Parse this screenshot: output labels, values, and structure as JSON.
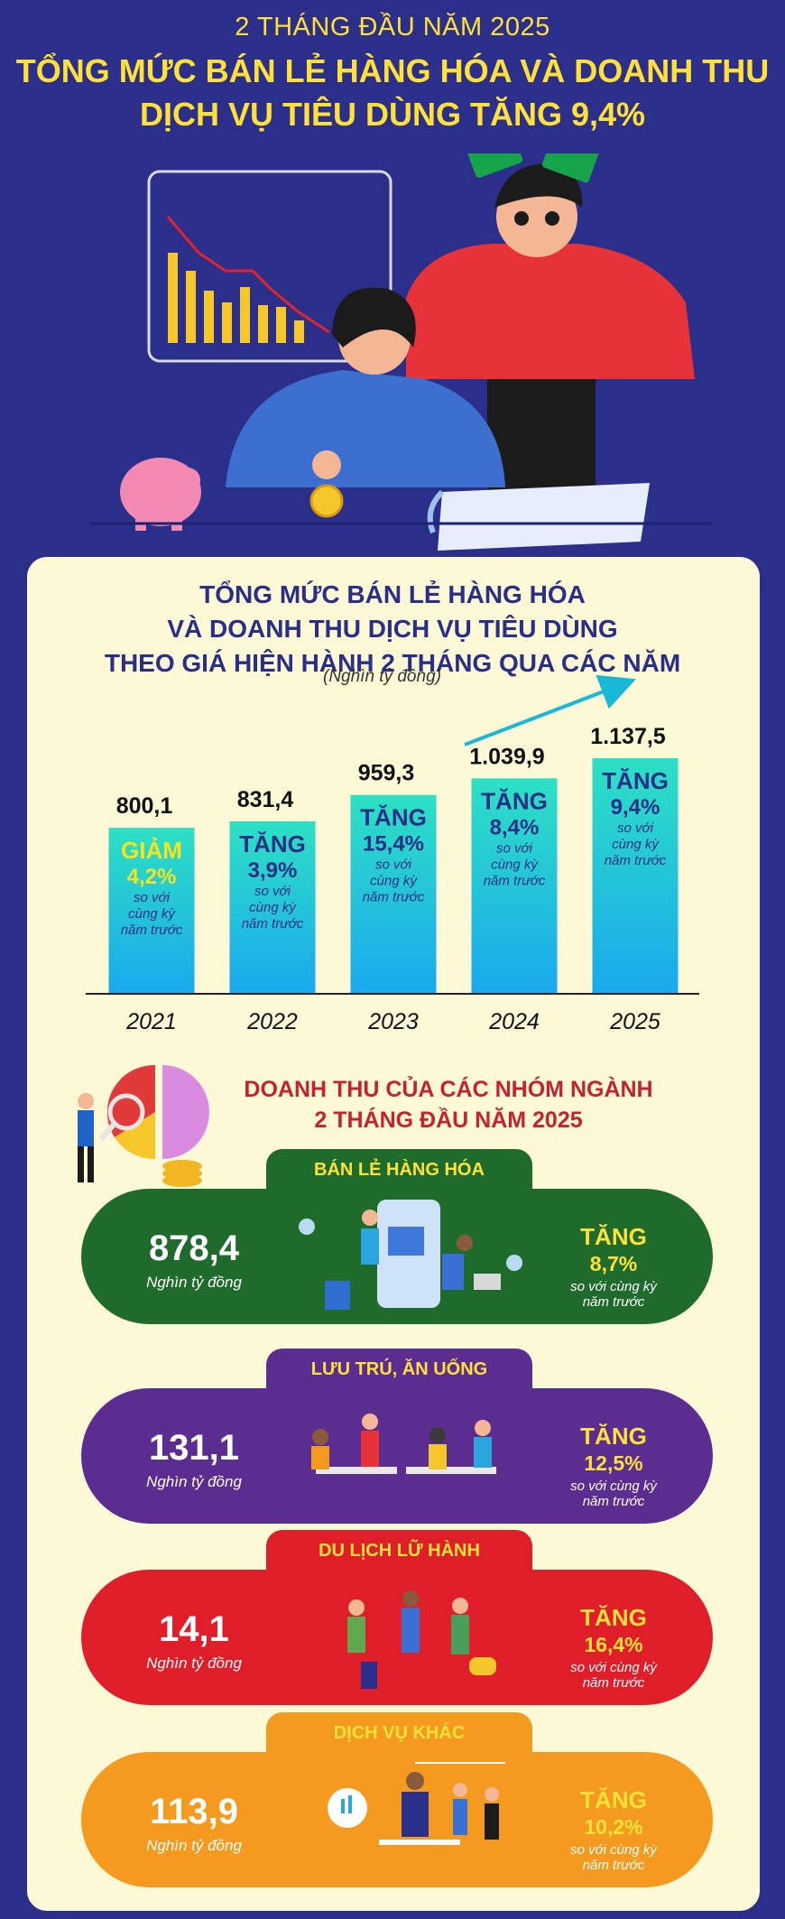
{
  "header": {
    "subtitle": "2 THÁNG ĐẦU NĂM 2025",
    "title_line1": "TỔNG MỨC BÁN LẺ HÀNG HÓA VÀ DOANH THU",
    "title_line2": "DỊCH VỤ TIÊU DÙNG TĂNG 9,4%"
  },
  "chart_title": {
    "line1": "TỔNG MỨC BÁN LẺ HÀNG HÓA",
    "line2": "VÀ DOANH THU DỊCH VỤ TIÊU DÙNG",
    "line3": "THEO GIÁ HIỆN HÀNH 2 THÁNG QUA CÁC NĂM",
    "unit": "(Nghìn tỷ đồng)"
  },
  "chart_data": {
    "type": "bar",
    "categories": [
      "2021",
      "2022",
      "2023",
      "2024",
      "2025"
    ],
    "values": [
      800.1,
      831.4,
      959.3,
      1039.9,
      1137.5
    ],
    "value_labels": [
      "800,1",
      "831,4",
      "959,3",
      "1.039,9",
      "1.137,5"
    ],
    "change_direction": [
      "GIẢM",
      "TĂNG",
      "TĂNG",
      "TĂNG",
      "TĂNG"
    ],
    "change_values": [
      "4,2%",
      "3,9%",
      "15,4%",
      "8,4%",
      "9,4%"
    ],
    "change_note": [
      "so với",
      "cùng kỳ",
      "năm trước"
    ],
    "bar_color_top": "#2de0c4",
    "bar_color_bottom": "#1aa9ee",
    "decrease_color": "#f5e51a",
    "increase_color": "#2a2f86",
    "trend_arrow_color": "#19b8d6"
  },
  "section2": {
    "title_line1": "DOANH THU CỦA CÁC NHÓM NGÀNH",
    "title_line2": "2 THÁNG ĐẦU NĂM 2025"
  },
  "categories": [
    {
      "name": "BÁN LẺ HÀNG HÓA",
      "value": "878,4",
      "unit": "Nghìn tỷ đồng",
      "change_label": "TĂNG",
      "change": "8,7%",
      "note1": "so với cùng kỳ",
      "note2": "năm trước",
      "color": "#1f6b2c"
    },
    {
      "name": "LƯU TRÚ, ĂN UỐNG",
      "value": "131,1",
      "unit": "Nghìn tỷ đồng",
      "change_label": "TĂNG",
      "change": "12,5%",
      "note1": "so với cùng kỳ",
      "note2": "năm trước",
      "color": "#5b2d91"
    },
    {
      "name": "DU LỊCH LỮ HÀNH",
      "value": "14,1",
      "unit": "Nghìn tỷ đồng",
      "change_label": "TĂNG",
      "change": "16,4%",
      "note1": "so với cùng kỳ",
      "note2": "năm trước",
      "color": "#e01e2a"
    },
    {
      "name": "DỊCH VỤ KHÁC",
      "value": "113,9",
      "unit": "Nghìn tỷ đồng",
      "change_label": "TĂNG",
      "change": "10,2%",
      "note1": "so với cùng kỳ",
      "note2": "năm trước",
      "color": "#f39a1f"
    }
  ]
}
